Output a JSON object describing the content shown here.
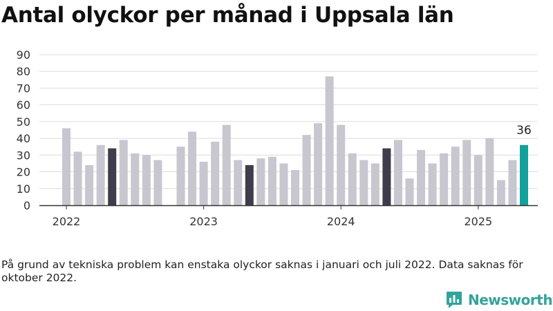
{
  "title": "Antal olyckor per månad i Uppsala län",
  "note": "På grund av tekniska problem kan enstaka olyckor saknas i januari och juli 2022. Data saknas för oktober 2022.",
  "brand": {
    "name": "Newsworthy",
    "icon": "newsworthy-logo-icon",
    "color": "#33a39b"
  },
  "chart_data": {
    "type": "bar",
    "title": "Antal olyckor per månad i Uppsala län",
    "xlabel": "",
    "ylabel": "",
    "ylim": [
      0,
      90
    ],
    "yticks": [
      0,
      10,
      20,
      30,
      40,
      50,
      60,
      70,
      80,
      90
    ],
    "xticks": [
      "2022",
      "2023",
      "2024",
      "2025"
    ],
    "grid": true,
    "colors": {
      "default": "#c8c6cf",
      "highlight": "#3f3d4b",
      "latest": "#13a19b"
    },
    "categories": [
      "2022-01",
      "2022-02",
      "2022-03",
      "2022-04",
      "2022-05",
      "2022-06",
      "2022-07",
      "2022-08",
      "2022-09",
      "2022-10",
      "2022-11",
      "2022-12",
      "2023-01",
      "2023-02",
      "2023-03",
      "2023-04",
      "2023-05",
      "2023-06",
      "2023-07",
      "2023-08",
      "2023-09",
      "2023-10",
      "2023-11",
      "2023-12",
      "2024-01",
      "2024-02",
      "2024-03",
      "2024-04",
      "2024-05",
      "2024-06",
      "2024-07",
      "2024-08",
      "2024-09",
      "2024-10",
      "2024-11",
      "2024-12",
      "2025-01",
      "2025-02",
      "2025-03",
      "2025-04",
      "2025-05"
    ],
    "values": [
      46,
      32,
      24,
      36,
      34,
      39,
      31,
      30,
      27,
      null,
      35,
      44,
      26,
      38,
      48,
      27,
      24,
      28,
      29,
      25,
      21,
      42,
      49,
      77,
      48,
      31,
      27,
      25,
      34,
      39,
      16,
      33,
      25,
      31,
      35,
      39,
      30,
      40,
      15,
      27,
      36
    ],
    "highlight": [
      "2022-05",
      "2023-05",
      "2024-05"
    ],
    "latest": "2025-05",
    "annotations": [
      {
        "x": "2025-05",
        "text": "36"
      }
    ]
  }
}
